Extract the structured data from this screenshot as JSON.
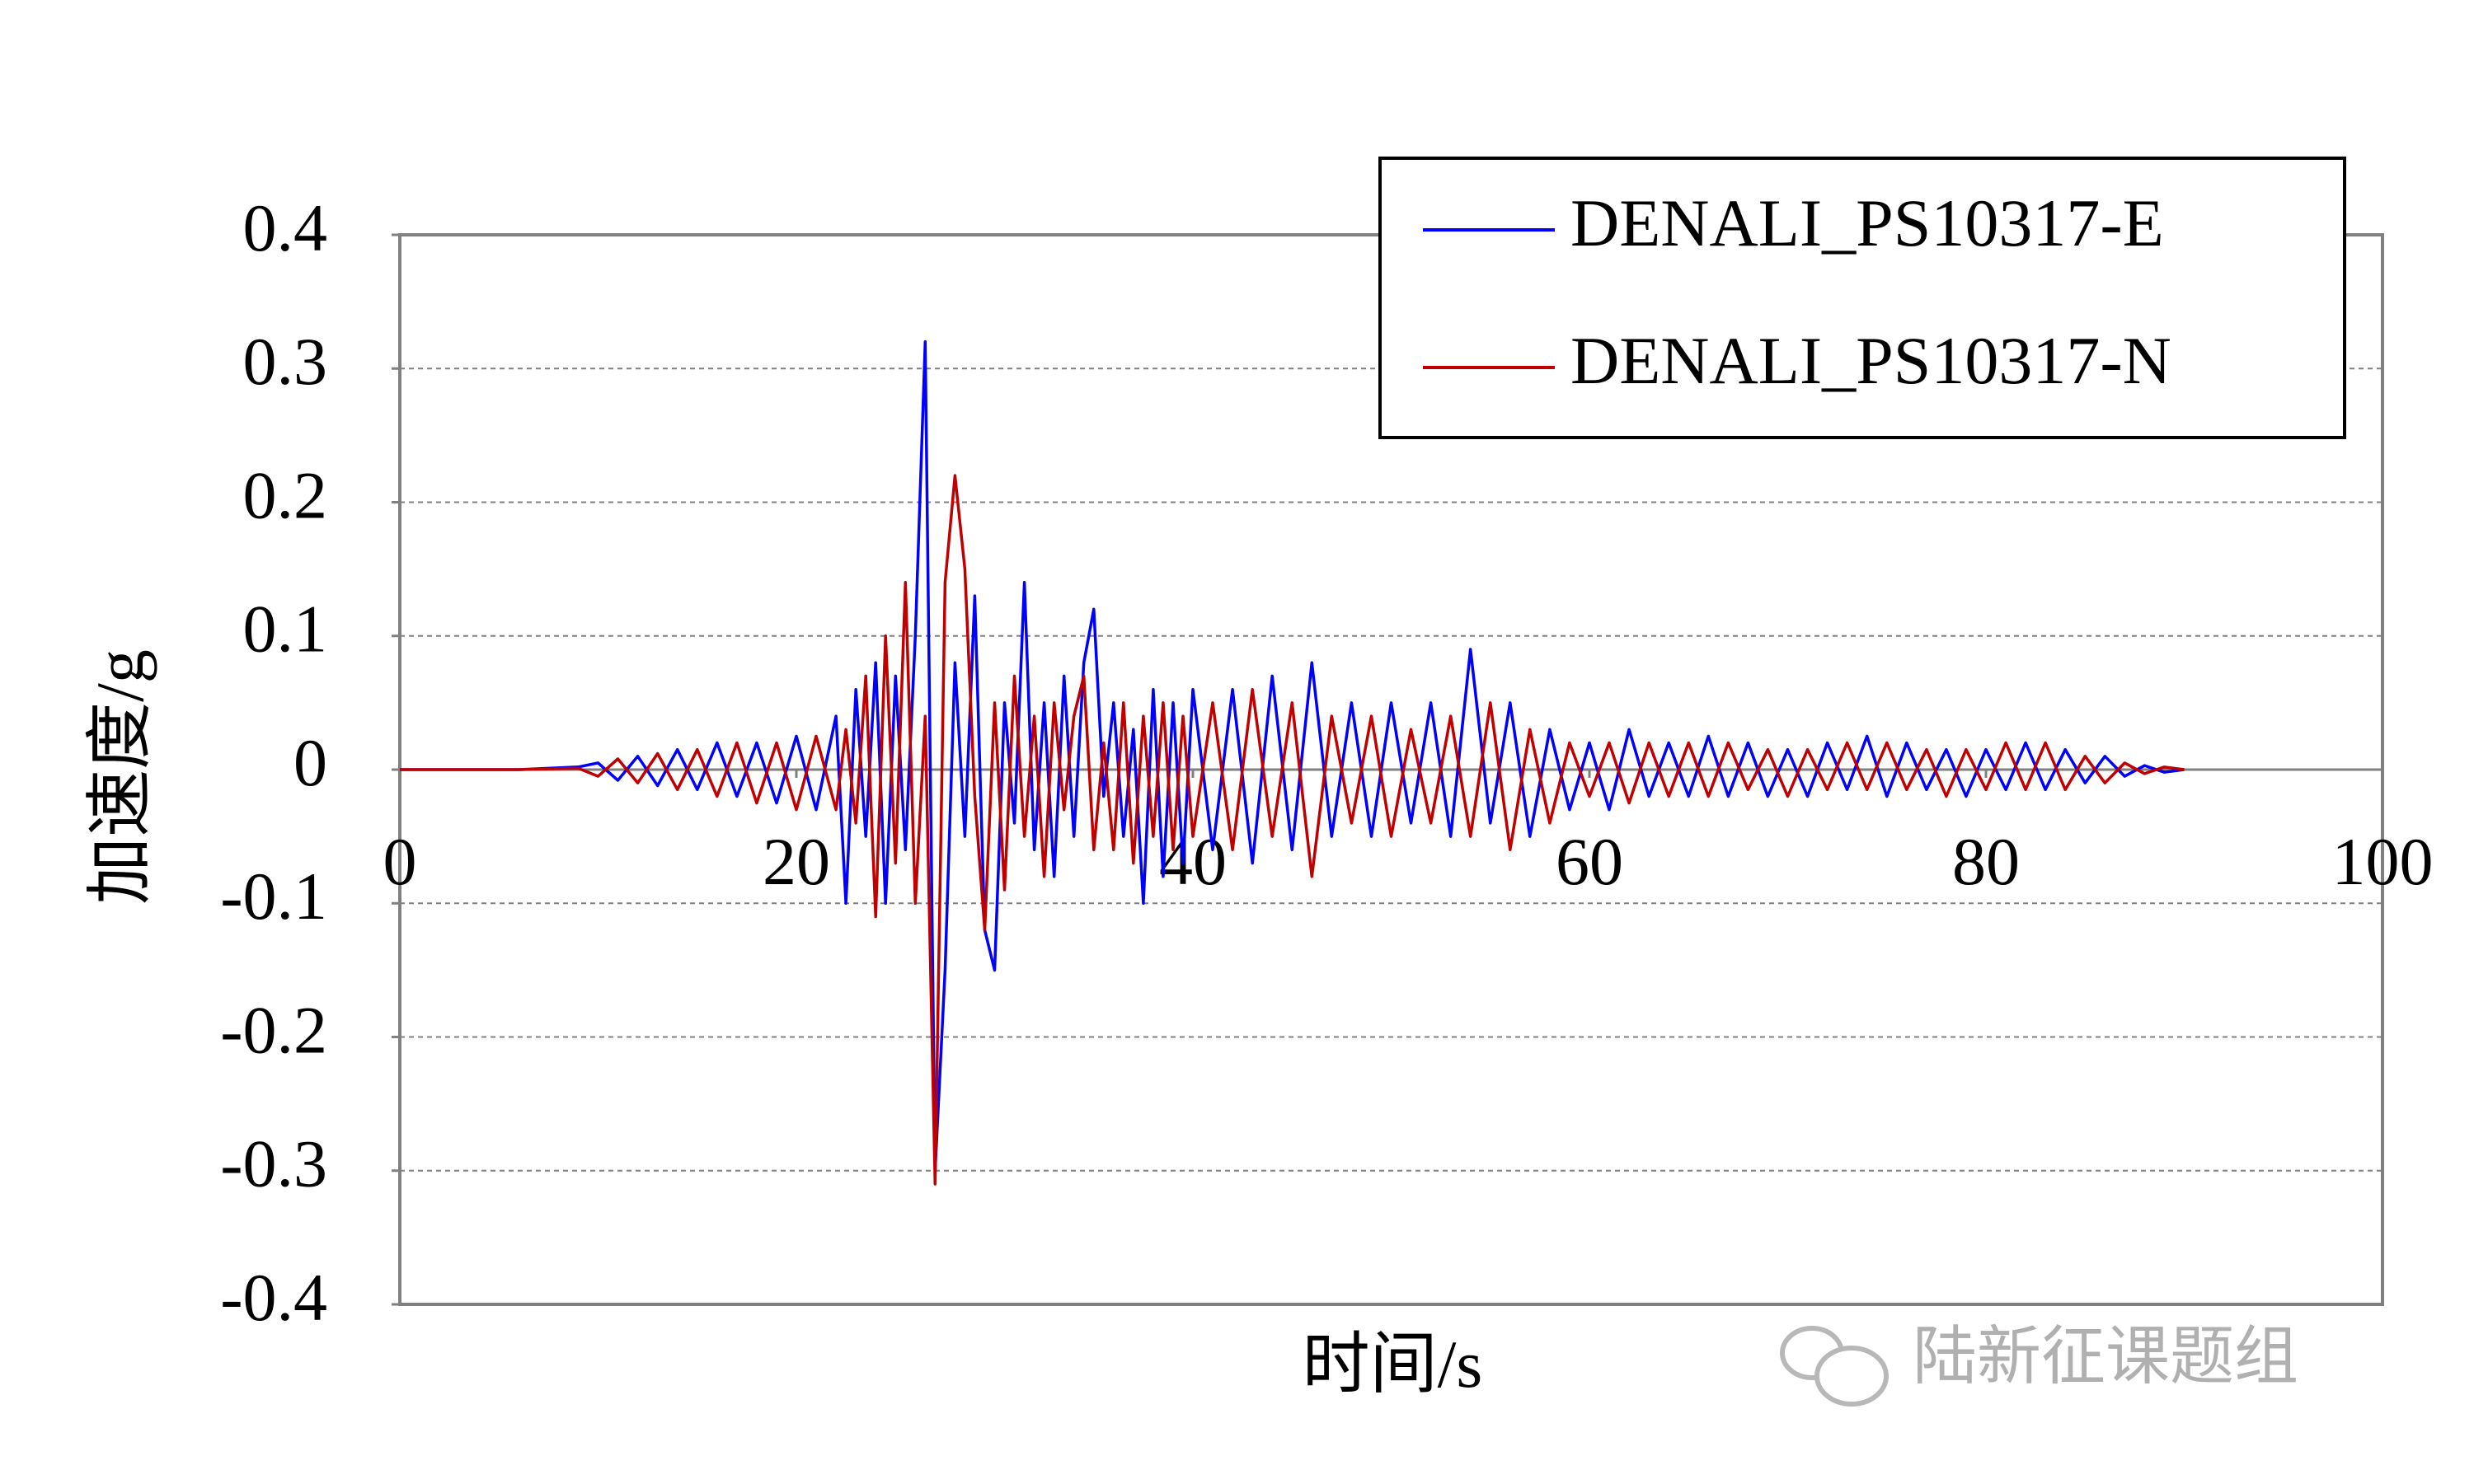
{
  "chart_data": {
    "type": "line",
    "x_label": "时间/s",
    "y_label": "加速度/g",
    "watermark": "陆新征课题组",
    "x": [
      0,
      3,
      6,
      9,
      10,
      11,
      12,
      13,
      14,
      15,
      16,
      17,
      18,
      19,
      20,
      21,
      22,
      22.5,
      23,
      23.5,
      24,
      24.5,
      25,
      25.5,
      26,
      26.5,
      27,
      27.5,
      28,
      28.5,
      29,
      29.5,
      30,
      30.5,
      31,
      31.5,
      32,
      32.5,
      33,
      33.5,
      34,
      34.5,
      35,
      35.5,
      36,
      36.5,
      37,
      37.5,
      38,
      38.5,
      39,
      39.5,
      40,
      41,
      42,
      43,
      44,
      45,
      46,
      47,
      48,
      49,
      50,
      51,
      52,
      53,
      54,
      55,
      56,
      57,
      58,
      59,
      60,
      61,
      62,
      63,
      64,
      65,
      66,
      67,
      68,
      69,
      70,
      71,
      72,
      73,
      74,
      75,
      76,
      77,
      78,
      79,
      80,
      81,
      82,
      83,
      84,
      85,
      86,
      87,
      88,
      89,
      90
    ],
    "series": [
      {
        "name": "DENALI_PS10317-E",
        "color": "#0000ff",
        "values": [
          0,
          0,
          0,
          0.002,
          0.005,
          -0.008,
          0.01,
          -0.012,
          0.015,
          -0.015,
          0.02,
          -0.02,
          0.02,
          -0.025,
          0.025,
          -0.03,
          0.04,
          -0.1,
          0.06,
          -0.05,
          0.08,
          -0.1,
          0.07,
          -0.06,
          0.1,
          0.32,
          -0.3,
          -0.15,
          0.08,
          -0.05,
          0.13,
          -0.12,
          -0.15,
          0.05,
          -0.04,
          0.14,
          -0.06,
          0.05,
          -0.08,
          0.07,
          -0.05,
          0.08,
          0.12,
          -0.02,
          0.05,
          -0.05,
          0.03,
          -0.1,
          0.06,
          -0.08,
          0.05,
          -0.07,
          0.06,
          -0.06,
          0.06,
          -0.07,
          0.07,
          -0.06,
          0.08,
          -0.05,
          0.05,
          -0.05,
          0.05,
          -0.04,
          0.05,
          -0.05,
          0.09,
          -0.04,
          0.05,
          -0.05,
          0.03,
          -0.03,
          0.02,
          -0.03,
          0.03,
          -0.02,
          0.02,
          -0.02,
          0.025,
          -0.02,
          0.02,
          -0.02,
          0.015,
          -0.02,
          0.02,
          -0.015,
          0.025,
          -0.02,
          0.02,
          -0.015,
          0.015,
          -0.02,
          0.015,
          -0.015,
          0.02,
          -0.015,
          0.015,
          -0.01,
          0.01,
          -0.005,
          0.003,
          -0.002,
          0
        ]
      },
      {
        "name": "DENALI_PS10317-N",
        "color": "#c00000",
        "values": [
          0,
          0,
          0,
          0.001,
          -0.005,
          0.008,
          -0.01,
          0.012,
          -0.015,
          0.015,
          -0.02,
          0.02,
          -0.025,
          0.02,
          -0.03,
          0.025,
          -0.03,
          0.03,
          -0.04,
          0.07,
          -0.11,
          0.1,
          -0.07,
          0.14,
          -0.1,
          0.04,
          -0.31,
          0.14,
          0.22,
          0.15,
          -0.02,
          -0.12,
          0.05,
          -0.09,
          0.07,
          -0.05,
          0.04,
          -0.08,
          0.05,
          -0.03,
          0.04,
          0.07,
          -0.06,
          0.02,
          -0.06,
          0.05,
          -0.07,
          0.04,
          -0.05,
          0.05,
          -0.06,
          0.04,
          -0.05,
          0.05,
          -0.06,
          0.06,
          -0.05,
          0.05,
          -0.08,
          0.04,
          -0.04,
          0.04,
          -0.05,
          0.03,
          -0.04,
          0.04,
          -0.05,
          0.05,
          -0.06,
          0.03,
          -0.04,
          0.02,
          -0.02,
          0.02,
          -0.025,
          0.02,
          -0.02,
          0.02,
          -0.02,
          0.02,
          -0.015,
          0.015,
          -0.02,
          0.015,
          -0.015,
          0.02,
          -0.015,
          0.02,
          -0.015,
          0.015,
          -0.02,
          0.015,
          -0.015,
          0.02,
          -0.015,
          0.02,
          -0.015,
          0.01,
          -0.01,
          0.005,
          -0.003,
          0.002,
          0
        ]
      }
    ],
    "xlim": [
      0,
      100
    ],
    "xticks": [
      0,
      20,
      40,
      60,
      80,
      100
    ],
    "ylim": [
      -0.4,
      0.4
    ],
    "yticks": [
      0.4,
      0.3,
      0.2,
      0.1,
      0,
      -0.1,
      -0.2,
      -0.3,
      -0.4
    ],
    "grid": true,
    "legend": "top-right"
  }
}
